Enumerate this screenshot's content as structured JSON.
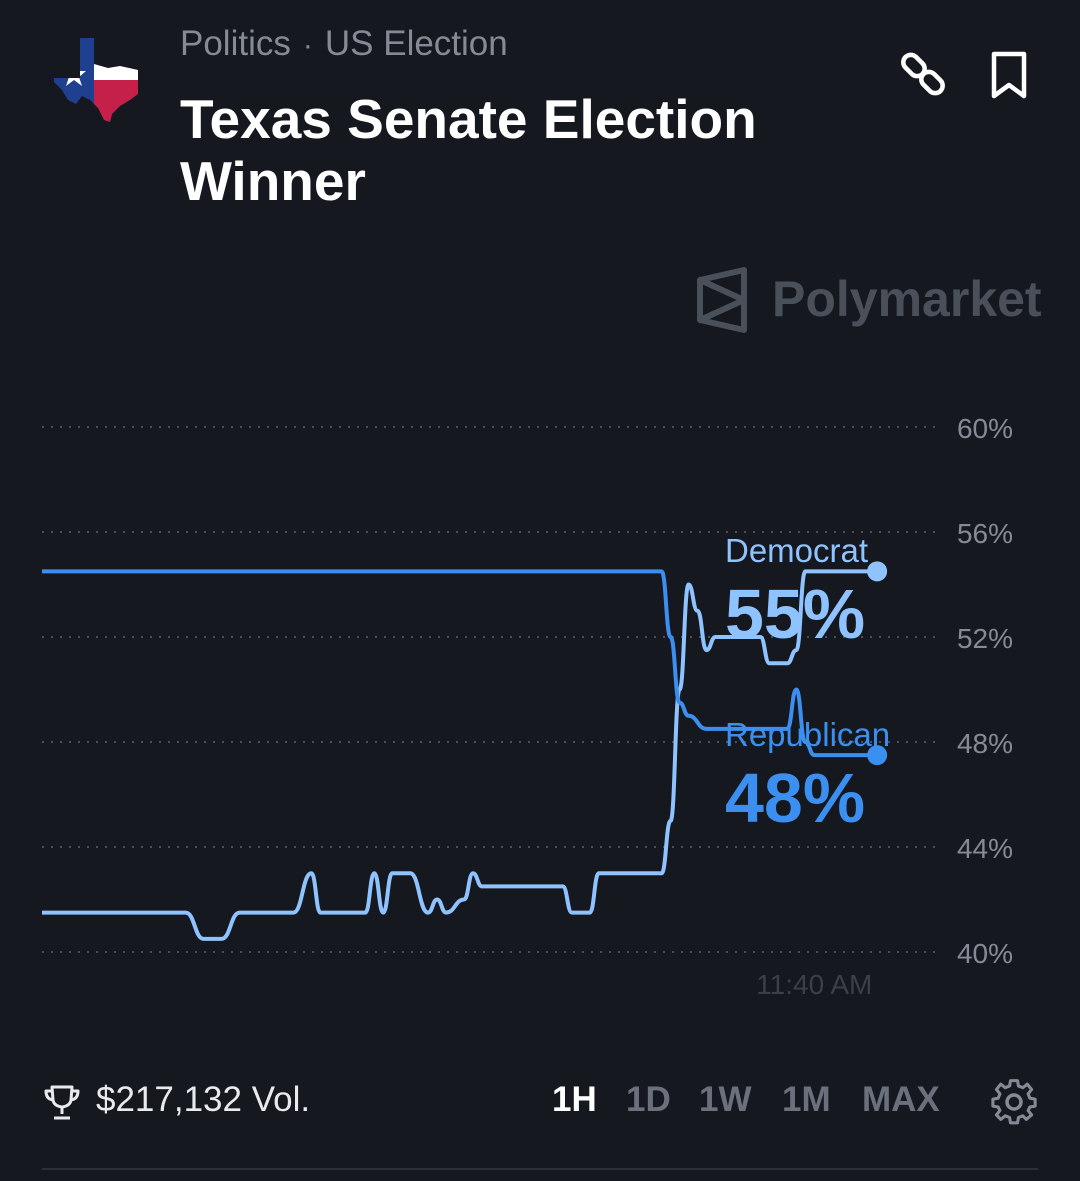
{
  "header": {
    "category": "Politics",
    "separator": "·",
    "subcategory": "US Election",
    "title": "Texas Senate Election Winner",
    "icon": "texas-flag-map-icon",
    "actions": [
      "link-icon",
      "bookmark-icon"
    ]
  },
  "watermark": {
    "brand": "Polymarket",
    "icon": "polymarket-logo-icon"
  },
  "colors": {
    "background": "#15181e",
    "democrat_line": "#8fc3ff",
    "republican_line": "#3b8ff0",
    "grid": "#4a505a",
    "axis_text": "#858b96"
  },
  "chart_data": {
    "type": "line",
    "y_ticks": [
      "60%",
      "56%",
      "52%",
      "48%",
      "44%",
      "40%"
    ],
    "y_tick_values": [
      60,
      56,
      52,
      48,
      44,
      40
    ],
    "ylim": [
      40,
      60
    ],
    "x_tick_label": "11:40 AM",
    "x_tick_position": 0.86,
    "grid": "horizontal-dotted",
    "series": [
      {
        "name": "Democrat",
        "current_label": "55%",
        "color": "#8fc3ff",
        "points": [
          [
            0,
            41.5
          ],
          [
            0.16,
            41.5
          ],
          [
            0.18,
            40.5
          ],
          [
            0.2,
            40.5
          ],
          [
            0.22,
            41.5
          ],
          [
            0.28,
            41.5
          ],
          [
            0.3,
            43
          ],
          [
            0.31,
            41.5
          ],
          [
            0.36,
            41.5
          ],
          [
            0.37,
            43
          ],
          [
            0.38,
            41.5
          ],
          [
            0.39,
            43
          ],
          [
            0.41,
            43
          ],
          [
            0.43,
            41.5
          ],
          [
            0.44,
            42
          ],
          [
            0.45,
            41.5
          ],
          [
            0.47,
            42
          ],
          [
            0.48,
            43
          ],
          [
            0.49,
            42.5
          ],
          [
            0.58,
            42.5
          ],
          [
            0.59,
            41.5
          ],
          [
            0.61,
            41.5
          ],
          [
            0.62,
            43
          ],
          [
            0.69,
            43
          ],
          [
            0.7,
            45
          ],
          [
            0.71,
            50
          ],
          [
            0.72,
            54
          ],
          [
            0.73,
            53
          ],
          [
            0.74,
            51.5
          ],
          [
            0.75,
            52
          ],
          [
            0.8,
            52
          ],
          [
            0.81,
            51
          ],
          [
            0.83,
            51
          ],
          [
            0.84,
            51.5
          ],
          [
            0.85,
            54.5
          ],
          [
            0.86,
            54.5
          ],
          [
            0.88,
            54.5
          ],
          [
            0.9,
            54.5
          ],
          [
            0.92,
            54.5
          ],
          [
            0.93,
            54.5
          ]
        ]
      },
      {
        "name": "Republican",
        "current_label": "48%",
        "color": "#3b8ff0",
        "points": [
          [
            0,
            54.5
          ],
          [
            0.68,
            54.5
          ],
          [
            0.69,
            54.5
          ],
          [
            0.7,
            52
          ],
          [
            0.71,
            49.5
          ],
          [
            0.72,
            49
          ],
          [
            0.74,
            48.5
          ],
          [
            0.82,
            48.5
          ],
          [
            0.83,
            48.5
          ],
          [
            0.84,
            50
          ],
          [
            0.85,
            48
          ],
          [
            0.86,
            47.5
          ],
          [
            0.93,
            47.5
          ]
        ]
      }
    ]
  },
  "footer": {
    "trophy_icon": "trophy-icon",
    "volume": "$217,132 Vol.",
    "ranges": [
      "1H",
      "1D",
      "1W",
      "1M",
      "MAX"
    ],
    "active_range": "1H",
    "settings_icon": "gear-icon"
  }
}
